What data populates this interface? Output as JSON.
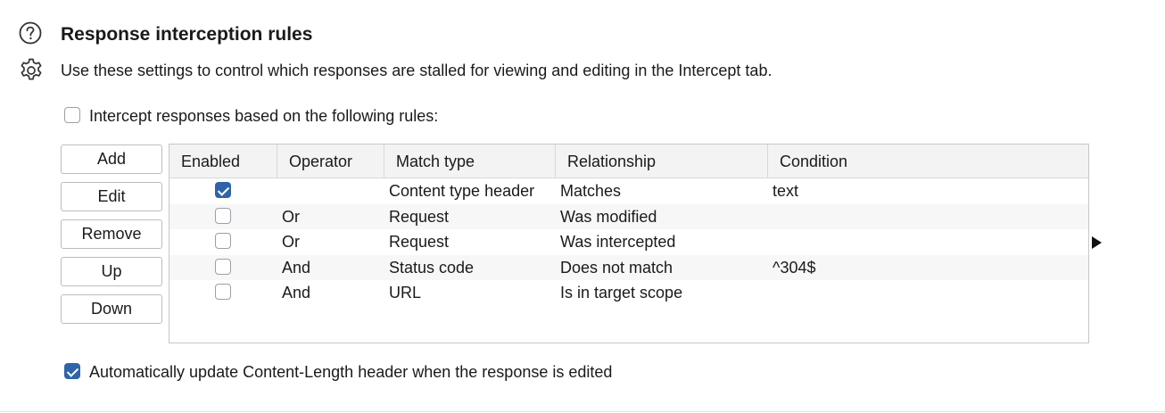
{
  "header": {
    "title": "Response interception rules",
    "description": "Use these settings to control which responses are stalled for viewing and editing in the Intercept tab.",
    "help_icon": "help-circle-icon",
    "settings_icon": "gear-icon"
  },
  "intercept_toggle": {
    "label": "Intercept responses based on the following rules:",
    "checked": false
  },
  "buttons": {
    "add": "Add",
    "edit": "Edit",
    "remove": "Remove",
    "up": "Up",
    "down": "Down"
  },
  "table": {
    "columns": [
      "Enabled",
      "Operator",
      "Match type",
      "Relationship",
      "Condition"
    ],
    "rows": [
      {
        "enabled": true,
        "operator": "",
        "match_type": "Content type header",
        "relationship": "Matches",
        "condition": "text"
      },
      {
        "enabled": false,
        "operator": "Or",
        "match_type": "Request",
        "relationship": "Was modified",
        "condition": ""
      },
      {
        "enabled": false,
        "operator": "Or",
        "match_type": "Request",
        "relationship": "Was intercepted",
        "condition": ""
      },
      {
        "enabled": false,
        "operator": "And",
        "match_type": "Status code",
        "relationship": "Does not match",
        "condition": "^304$"
      },
      {
        "enabled": false,
        "operator": "And",
        "match_type": "URL",
        "relationship": "Is in target scope",
        "condition": ""
      }
    ]
  },
  "auto_update": {
    "label": "Automatically update Content-Length header when the response is edited",
    "checked": true
  },
  "colors": {
    "accent": "#2f65a8",
    "border": "#c4c7cb",
    "header_bg": "#f3f3f3"
  }
}
